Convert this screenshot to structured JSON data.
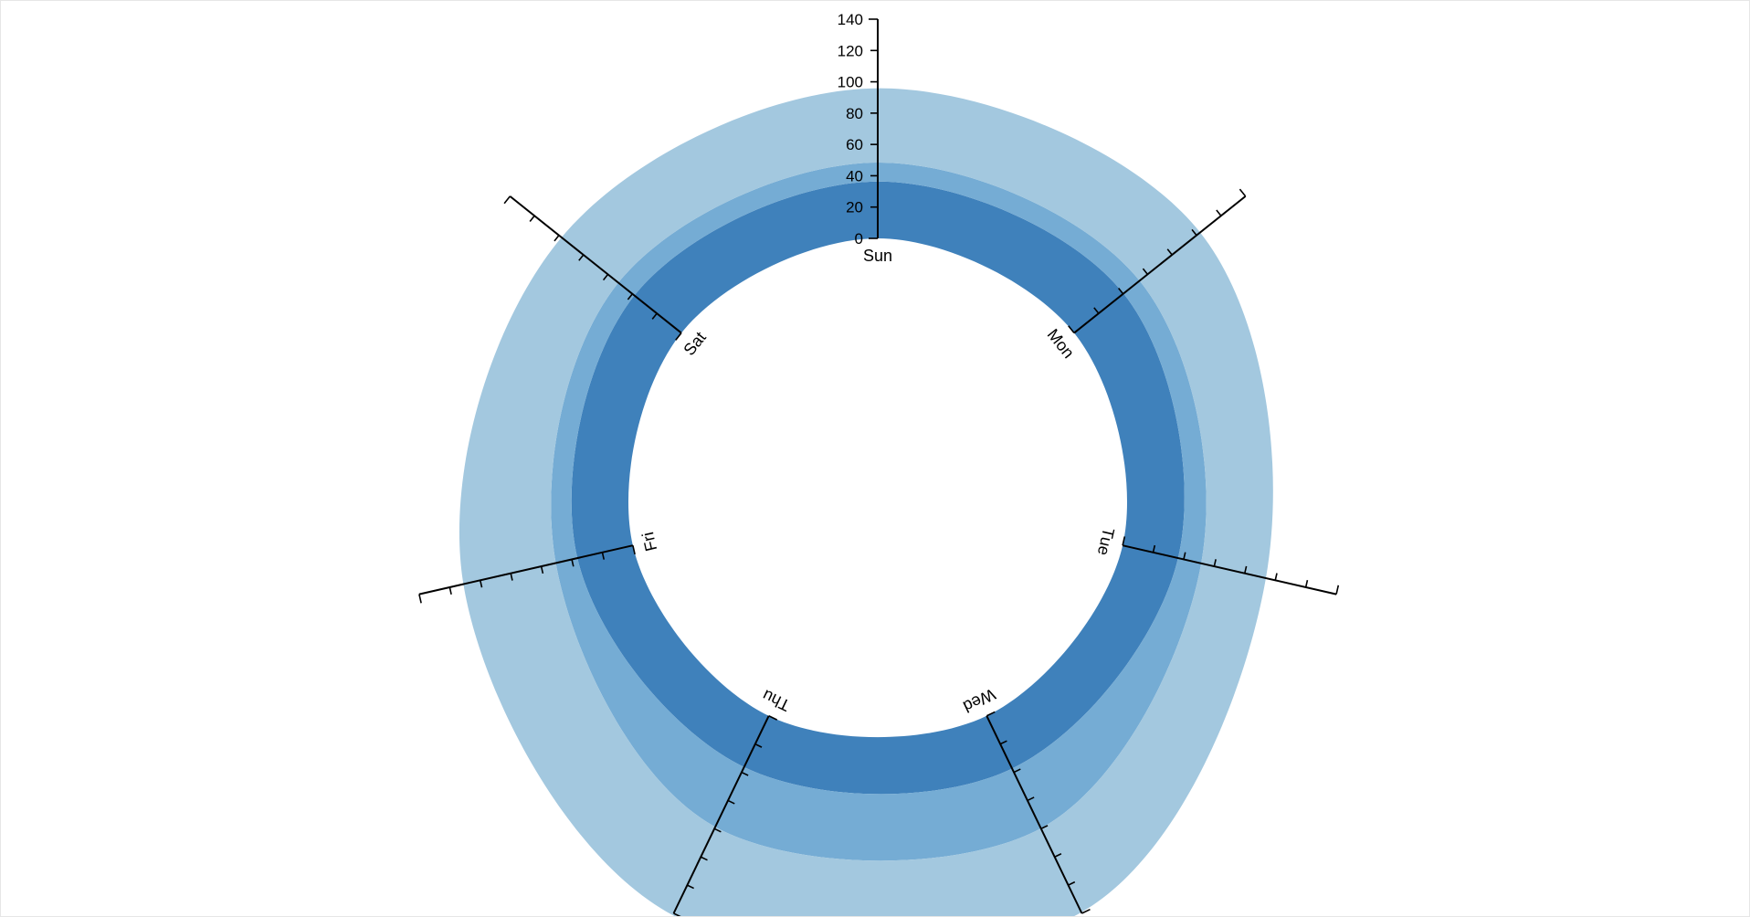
{
  "chart_data": {
    "type": "area",
    "subtype": "radial-stacked-area",
    "categories": [
      "Sun",
      "Mon",
      "Tue",
      "Wed",
      "Thu",
      "Fri",
      "Sat"
    ],
    "series": [
      {
        "values": [
          36,
          40,
          36,
          37,
          36,
          36,
          38
        ],
        "color": "#3f81bb"
      },
      {
        "values": [
          12,
          13,
          15,
          42,
          42,
          14,
          13
        ],
        "color": "#75acd4"
      },
      {
        "values": [
          47,
          49,
          42,
          59,
          62,
          60,
          46
        ],
        "color": "#a3c8df"
      }
    ],
    "radial_axis": {
      "ticks": [
        0,
        20,
        40,
        60,
        80,
        100,
        120,
        140
      ],
      "tick_labels": [
        "0",
        "20",
        "40",
        "60",
        "80",
        "100",
        "120",
        "140"
      ],
      "domain": [
        0,
        140
      ]
    },
    "grid": false,
    "legend": "none"
  }
}
